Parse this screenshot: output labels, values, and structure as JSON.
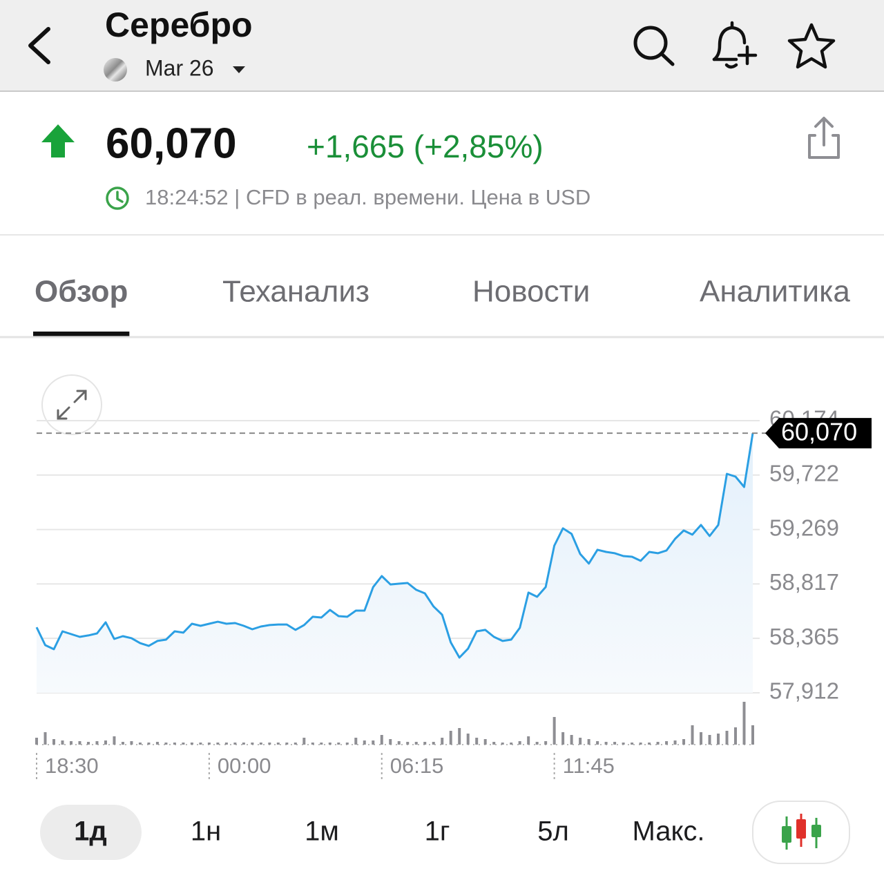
{
  "header": {
    "title": "Серебро",
    "contract": "Mar 26"
  },
  "quote": {
    "price": "60,070",
    "change": "+1,665 (+2,85%)",
    "time_note": "18:24:52 | CFD в реал. времени. Цена в USD"
  },
  "tabs": [
    "Обзор",
    "Теханализ",
    "Новости",
    "Аналитика"
  ],
  "active_tab": 0,
  "ranges": [
    "1д",
    "1н",
    "1м",
    "1г",
    "5л",
    "Макс."
  ],
  "active_range": 0,
  "chart_data": {
    "type": "line",
    "color": "#2b9fe3",
    "categories": [
      "18:30",
      null,
      null,
      null,
      null,
      null,
      null,
      null,
      null,
      null,
      null,
      null,
      null,
      null,
      null,
      null,
      null,
      null,
      null,
      null,
      "00:00",
      null,
      null,
      null,
      null,
      null,
      null,
      null,
      null,
      null,
      null,
      null,
      null,
      null,
      null,
      null,
      null,
      null,
      null,
      null,
      "06:15",
      null,
      null,
      null,
      null,
      null,
      null,
      null,
      null,
      null,
      null,
      null,
      null,
      null,
      null,
      null,
      null,
      null,
      null,
      null,
      "11:45",
      null,
      null,
      null,
      null,
      null,
      null,
      null,
      null,
      null,
      null,
      null,
      null,
      null,
      null,
      null,
      null,
      null,
      null,
      null,
      null,
      null,
      null,
      null
    ],
    "values": [
      58457,
      58308,
      58274,
      58423,
      58400,
      58377,
      58389,
      58406,
      58498,
      58360,
      58383,
      58366,
      58325,
      58302,
      58343,
      58354,
      58423,
      58412,
      58486,
      58469,
      58486,
      58503,
      58486,
      58492,
      58469,
      58440,
      58463,
      58475,
      58480,
      58480,
      58435,
      58475,
      58544,
      58538,
      58601,
      58549,
      58544,
      58595,
      58595,
      58791,
      58882,
      58813,
      58819,
      58825,
      58768,
      58739,
      58630,
      58561,
      58331,
      58205,
      58279,
      58423,
      58435,
      58377,
      58343,
      58354,
      58452,
      58745,
      58710,
      58791,
      59135,
      59279,
      59233,
      59066,
      58986,
      59101,
      59083,
      59072,
      59049,
      59043,
      59009,
      59083,
      59072,
      59095,
      59192,
      59261,
      59227,
      59307,
      59215,
      59307,
      59732,
      59709,
      59623,
      60070
    ],
    "volume": [
      10,
      18,
      8,
      6,
      5,
      5,
      4,
      5,
      6,
      12,
      4,
      5,
      3,
      3,
      4,
      3,
      3,
      3,
      3,
      3,
      3,
      3,
      3,
      3,
      3,
      3,
      3,
      3,
      3,
      3,
      3,
      10,
      3,
      3,
      3,
      3,
      3,
      10,
      6,
      6,
      14,
      8,
      5,
      4,
      4,
      4,
      4,
      10,
      20,
      24,
      16,
      10,
      8,
      4,
      3,
      3,
      5,
      12,
      4,
      5,
      40,
      18,
      14,
      10,
      8,
      5,
      4,
      4,
      3,
      3,
      3,
      3,
      4,
      5,
      6,
      8,
      28,
      18,
      14,
      16,
      20,
      25,
      62,
      28
    ],
    "volume_color": "#8e8e93",
    "ylim": [
      57912,
      60174
    ],
    "yticks": [
      {
        "value": 57912,
        "label": "57,912"
      },
      {
        "value": 58365,
        "label": "58,365"
      },
      {
        "value": 58817,
        "label": "58,817"
      },
      {
        "value": 59269,
        "label": "59,269"
      },
      {
        "value": 59722,
        "label": "59,722"
      },
      {
        "value": 60174,
        "label": "60,174"
      }
    ],
    "last_value": {
      "value": 60070,
      "label": "60,070"
    },
    "grid": true
  }
}
